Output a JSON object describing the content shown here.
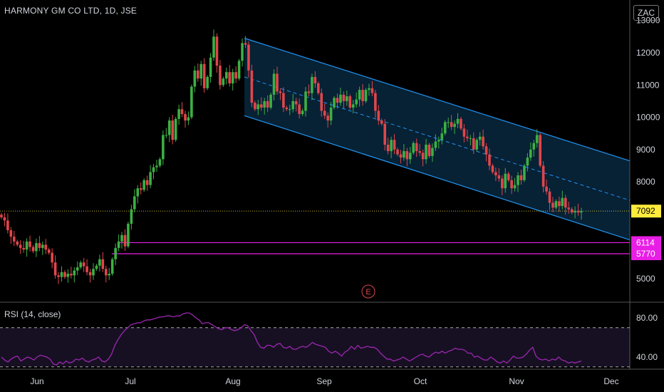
{
  "header": {
    "title": "HARMONY GM CO LTD, 1D, JSE",
    "currency": "ZAC"
  },
  "chart_data": {
    "type": "candlestick",
    "symbol": "HARMONY GM CO LTD",
    "interval": "1D",
    "exchange": "JSE",
    "price_axis": {
      "ticks": [
        13000,
        12000,
        11000,
        10000,
        9000,
        8000,
        5000
      ],
      "tick_labels": [
        "13000",
        "12000",
        "11000",
        "10000",
        "9000",
        "8000",
        "5000"
      ]
    },
    "time_axis": {
      "labels": [
        "Jun",
        "Jul",
        "Aug",
        "Sep",
        "Oct",
        "Nov",
        "Dec"
      ]
    },
    "last_price": {
      "value": 7092,
      "label": "7092",
      "color": "#ffeb3b"
    },
    "support_levels": [
      {
        "value": 6114,
        "label": "6114",
        "color": "#e91ee6"
      },
      {
        "value": 5770,
        "label": "5770",
        "color": "#e91ee6"
      }
    ],
    "channel": {
      "upper": [
        [
          12450,
          8650
        ]
      ],
      "lower": [
        [
          10050,
          6200
        ]
      ],
      "color": "#2196f3"
    },
    "earnings_marker": {
      "label": "E"
    },
    "closes": [
      6900,
      6800,
      6500,
      6300,
      6150,
      6050,
      5950,
      5900,
      6150,
      5980,
      5850,
      6100,
      5950,
      6050,
      5900,
      5800,
      5500,
      5100,
      5050,
      5200,
      5050,
      5150,
      5100,
      5250,
      5350,
      5500,
      5380,
      5200,
      5100,
      5300,
      5400,
      5600,
      5300,
      5100,
      5150,
      5600,
      5950,
      6150,
      6350,
      6000,
      6700,
      7150,
      7550,
      7800,
      7750,
      8050,
      7900,
      8300,
      8450,
      8500,
      8700,
      9450,
      9450,
      9900,
      9300,
      9950,
      10250,
      10100,
      9900,
      10000,
      10950,
      11450,
      11200,
      11650,
      10900,
      11250,
      11850,
      12500,
      11600,
      11000,
      11200,
      11400,
      11050,
      11400,
      11200,
      11750,
      12300,
      12250,
      11450,
      10450,
      10250,
      10400,
      10300,
      10500,
      10300,
      10700,
      11350,
      10800,
      10750,
      10300,
      10250,
      10250,
      10500,
      10400,
      10100,
      10200,
      10800,
      10750,
      11250,
      11050,
      10750,
      10200,
      10050,
      9900,
      10300,
      10600,
      10450,
      10700,
      10500,
      10650,
      10300,
      10400,
      10550,
      10850,
      10500,
      10850,
      10900,
      10750,
      10200,
      9900,
      9800,
      9150,
      8950,
      9300,
      9000,
      8850,
      8750,
      8950,
      8700,
      8900,
      9200,
      8950,
      8900,
      8700,
      9150,
      8800,
      9050,
      9250,
      9300,
      9500,
      9850,
      9850,
      9700,
      9800,
      9950,
      9650,
      9400,
      9350,
      9350,
      9000,
      9300,
      9400,
      9100,
      8850,
      8500,
      8300,
      8200,
      8100,
      7800,
      8250,
      8050,
      7800,
      7900,
      8200,
      8050,
      8500,
      8750,
      9000,
      9200,
      9450,
      8500,
      7850,
      7700,
      7350,
      7200,
      7400,
      7250,
      7500,
      7200,
      7150,
      7050,
      7100,
      7050,
      7092
    ],
    "rsi": {
      "label": "RSI (14, close)",
      "upper_band": 70,
      "lower_band": 30,
      "tick_labels": [
        "80.00",
        "40.00"
      ],
      "line_color": "#9c27b0",
      "values": [
        40,
        37,
        35,
        38,
        40,
        41,
        36,
        38,
        40,
        39,
        37,
        40,
        42,
        41,
        40,
        38,
        33,
        32,
        35,
        33,
        36,
        34,
        35,
        38,
        37,
        39,
        36,
        35,
        37,
        38,
        40,
        36,
        35,
        38,
        43,
        52,
        58,
        63,
        67,
        70,
        73,
        74,
        75,
        75,
        77,
        78,
        78,
        79,
        80,
        81,
        81,
        82,
        82,
        81,
        82,
        82,
        84,
        85,
        85,
        83,
        80,
        78,
        74,
        75,
        75,
        73,
        71,
        69,
        68,
        70,
        70,
        68,
        67,
        68,
        70,
        73,
        72,
        67,
        63,
        55,
        50,
        49,
        52,
        52,
        50,
        53,
        54,
        50,
        49,
        51,
        48,
        48,
        50,
        51,
        50,
        52,
        55,
        53,
        52,
        51,
        50,
        46,
        44,
        46,
        44,
        41,
        45,
        47,
        51,
        48,
        52,
        49,
        50,
        51,
        50,
        50,
        48,
        44,
        41,
        38,
        38,
        36,
        37,
        38,
        40,
        38,
        36,
        38,
        40,
        42,
        43,
        41,
        40,
        43,
        45,
        44,
        46,
        44,
        46,
        47,
        49,
        48,
        48,
        47,
        44,
        44,
        40,
        41,
        39,
        37,
        37,
        40,
        38,
        35,
        34,
        36,
        34,
        37,
        41,
        39,
        39,
        40,
        43,
        47,
        50,
        41,
        38,
        37,
        38,
        36,
        38,
        37,
        40,
        37,
        36,
        34,
        35,
        34,
        35,
        36
      ]
    }
  }
}
